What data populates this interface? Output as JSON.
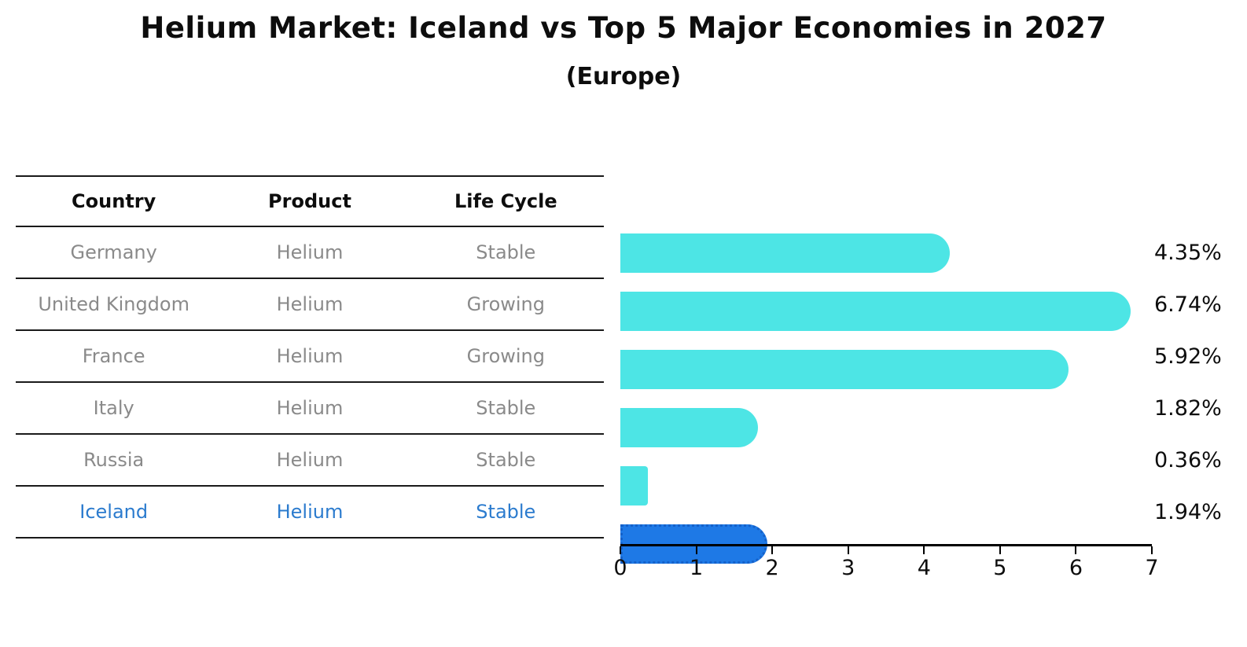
{
  "header": {
    "title": "Helium Market: Iceland vs Top 5 Major Economies in 2027",
    "subtitle": "(Europe)"
  },
  "table": {
    "columns": [
      "Country",
      "Product",
      "Life Cycle"
    ],
    "rows": [
      {
        "country": "Germany",
        "product": "Helium",
        "life_cycle": "Stable",
        "highlighted": false
      },
      {
        "country": "United Kingdom",
        "product": "Helium",
        "life_cycle": "Growing",
        "highlighted": false
      },
      {
        "country": "France",
        "product": "Helium",
        "life_cycle": "Growing",
        "highlighted": false
      },
      {
        "country": "Italy",
        "product": "Helium",
        "life_cycle": "Stable",
        "highlighted": false
      },
      {
        "country": "Russia",
        "product": "Helium",
        "life_cycle": "Stable",
        "highlighted": false
      },
      {
        "country": "Iceland",
        "product": "Helium",
        "life_cycle": "Stable",
        "highlighted": true
      }
    ]
  },
  "chart_data": {
    "type": "bar",
    "orientation": "horizontal",
    "title": "Helium Market: Iceland vs Top 5 Major Economies in 2027",
    "subtitle": "(Europe)",
    "categories": [
      "Germany",
      "United Kingdom",
      "France",
      "Italy",
      "Russia",
      "Iceland"
    ],
    "values": [
      4.35,
      6.74,
      5.92,
      1.82,
      0.36,
      1.94
    ],
    "value_labels": [
      "4.35%",
      "6.74%",
      "5.92%",
      "1.82%",
      "0.36%",
      "1.94%"
    ],
    "highlighted_category": "Iceland",
    "xlim": [
      0,
      7
    ],
    "x_ticks": [
      "0",
      "1",
      "2",
      "3",
      "4",
      "5",
      "6",
      "7"
    ],
    "grid": false,
    "legend": false,
    "bar_color": "#4de5e5",
    "highlight_bar_color": "#1e79e6",
    "highlight_border_color": "#1561c9",
    "highlight_text_color": "#2b7bce",
    "muted_text_color": "#8a8a8a"
  }
}
